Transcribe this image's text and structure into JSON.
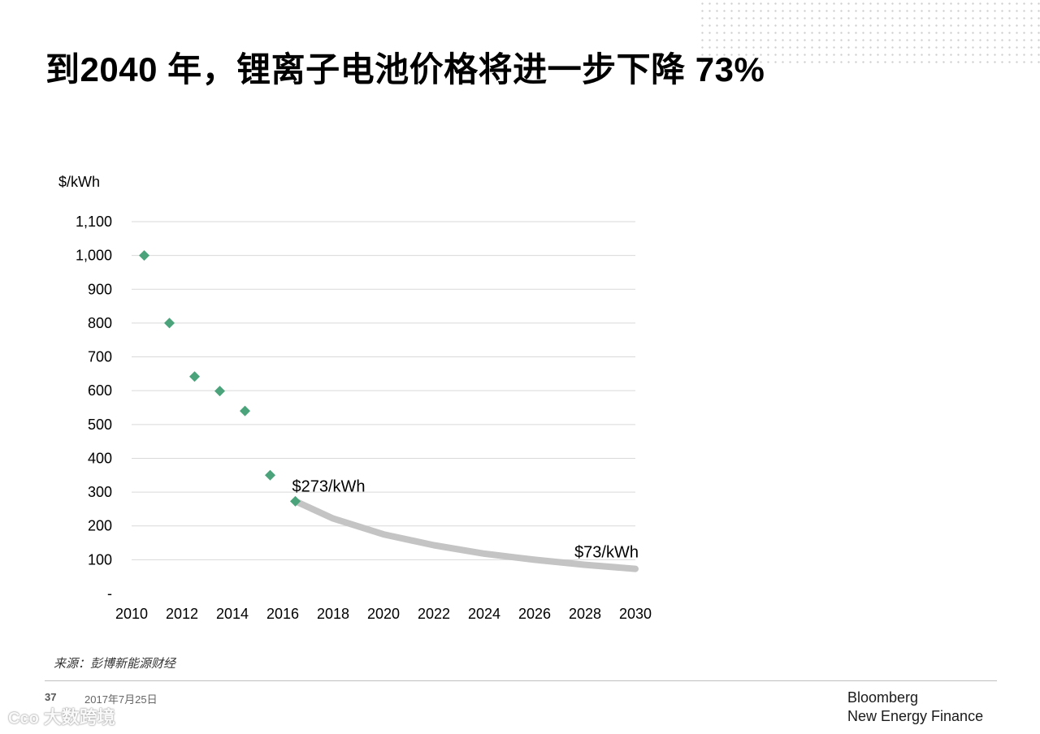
{
  "slide": {
    "title": "到2040 年，锂离子电池价格将进一步下降 73%",
    "source": "来源：彭博新能源财经",
    "page_number": "37",
    "date": "2017年7月25日",
    "brand_line1": "Bloomberg",
    "brand_line2": "New Energy Finance",
    "watermark": "大数跨境",
    "watermark_logo": "Cco"
  },
  "colors": {
    "marker": "#4aa37a",
    "forecast_line": "#c4c4c4",
    "grid": "#d9d9d9"
  },
  "chart_data": {
    "type": "scatter",
    "ylabel": "$/kWh",
    "ylim": [
      0,
      1100
    ],
    "y_ticks": [
      0,
      100,
      200,
      300,
      400,
      500,
      600,
      700,
      800,
      900,
      1000,
      1100
    ],
    "y_tick_labels": [
      "-",
      "100",
      "200",
      "300",
      "400",
      "500",
      "600",
      "700",
      "800",
      "900",
      "1,000",
      "1,100"
    ],
    "xlim": [
      2010,
      2030
    ],
    "x_ticks": [
      2010,
      2012,
      2014,
      2016,
      2018,
      2020,
      2022,
      2024,
      2026,
      2028,
      2030
    ],
    "x_tick_labels": [
      "2010",
      "2012",
      "2014",
      "2016",
      "2018",
      "2020",
      "2022",
      "2024",
      "2026",
      "2028",
      "2030"
    ],
    "grid": true,
    "series": [
      {
        "kind": "points",
        "x": [
          2010.5,
          2011.5,
          2012.5,
          2013.5,
          2014.5,
          2015.5,
          2016.5
        ],
        "y": [
          1000,
          800,
          642,
          599,
          540,
          350,
          273
        ]
      },
      {
        "kind": "line",
        "x": [
          2016.5,
          2018,
          2020,
          2022,
          2024,
          2026,
          2028,
          2030
        ],
        "y": [
          273,
          222,
          175,
          143,
          118,
          100,
          85,
          73
        ]
      }
    ],
    "annotations": [
      {
        "text": "$273/kWh",
        "x": 2016.5,
        "y": 273
      },
      {
        "text": "$73/kWh",
        "x": 2030,
        "y": 73
      }
    ]
  }
}
